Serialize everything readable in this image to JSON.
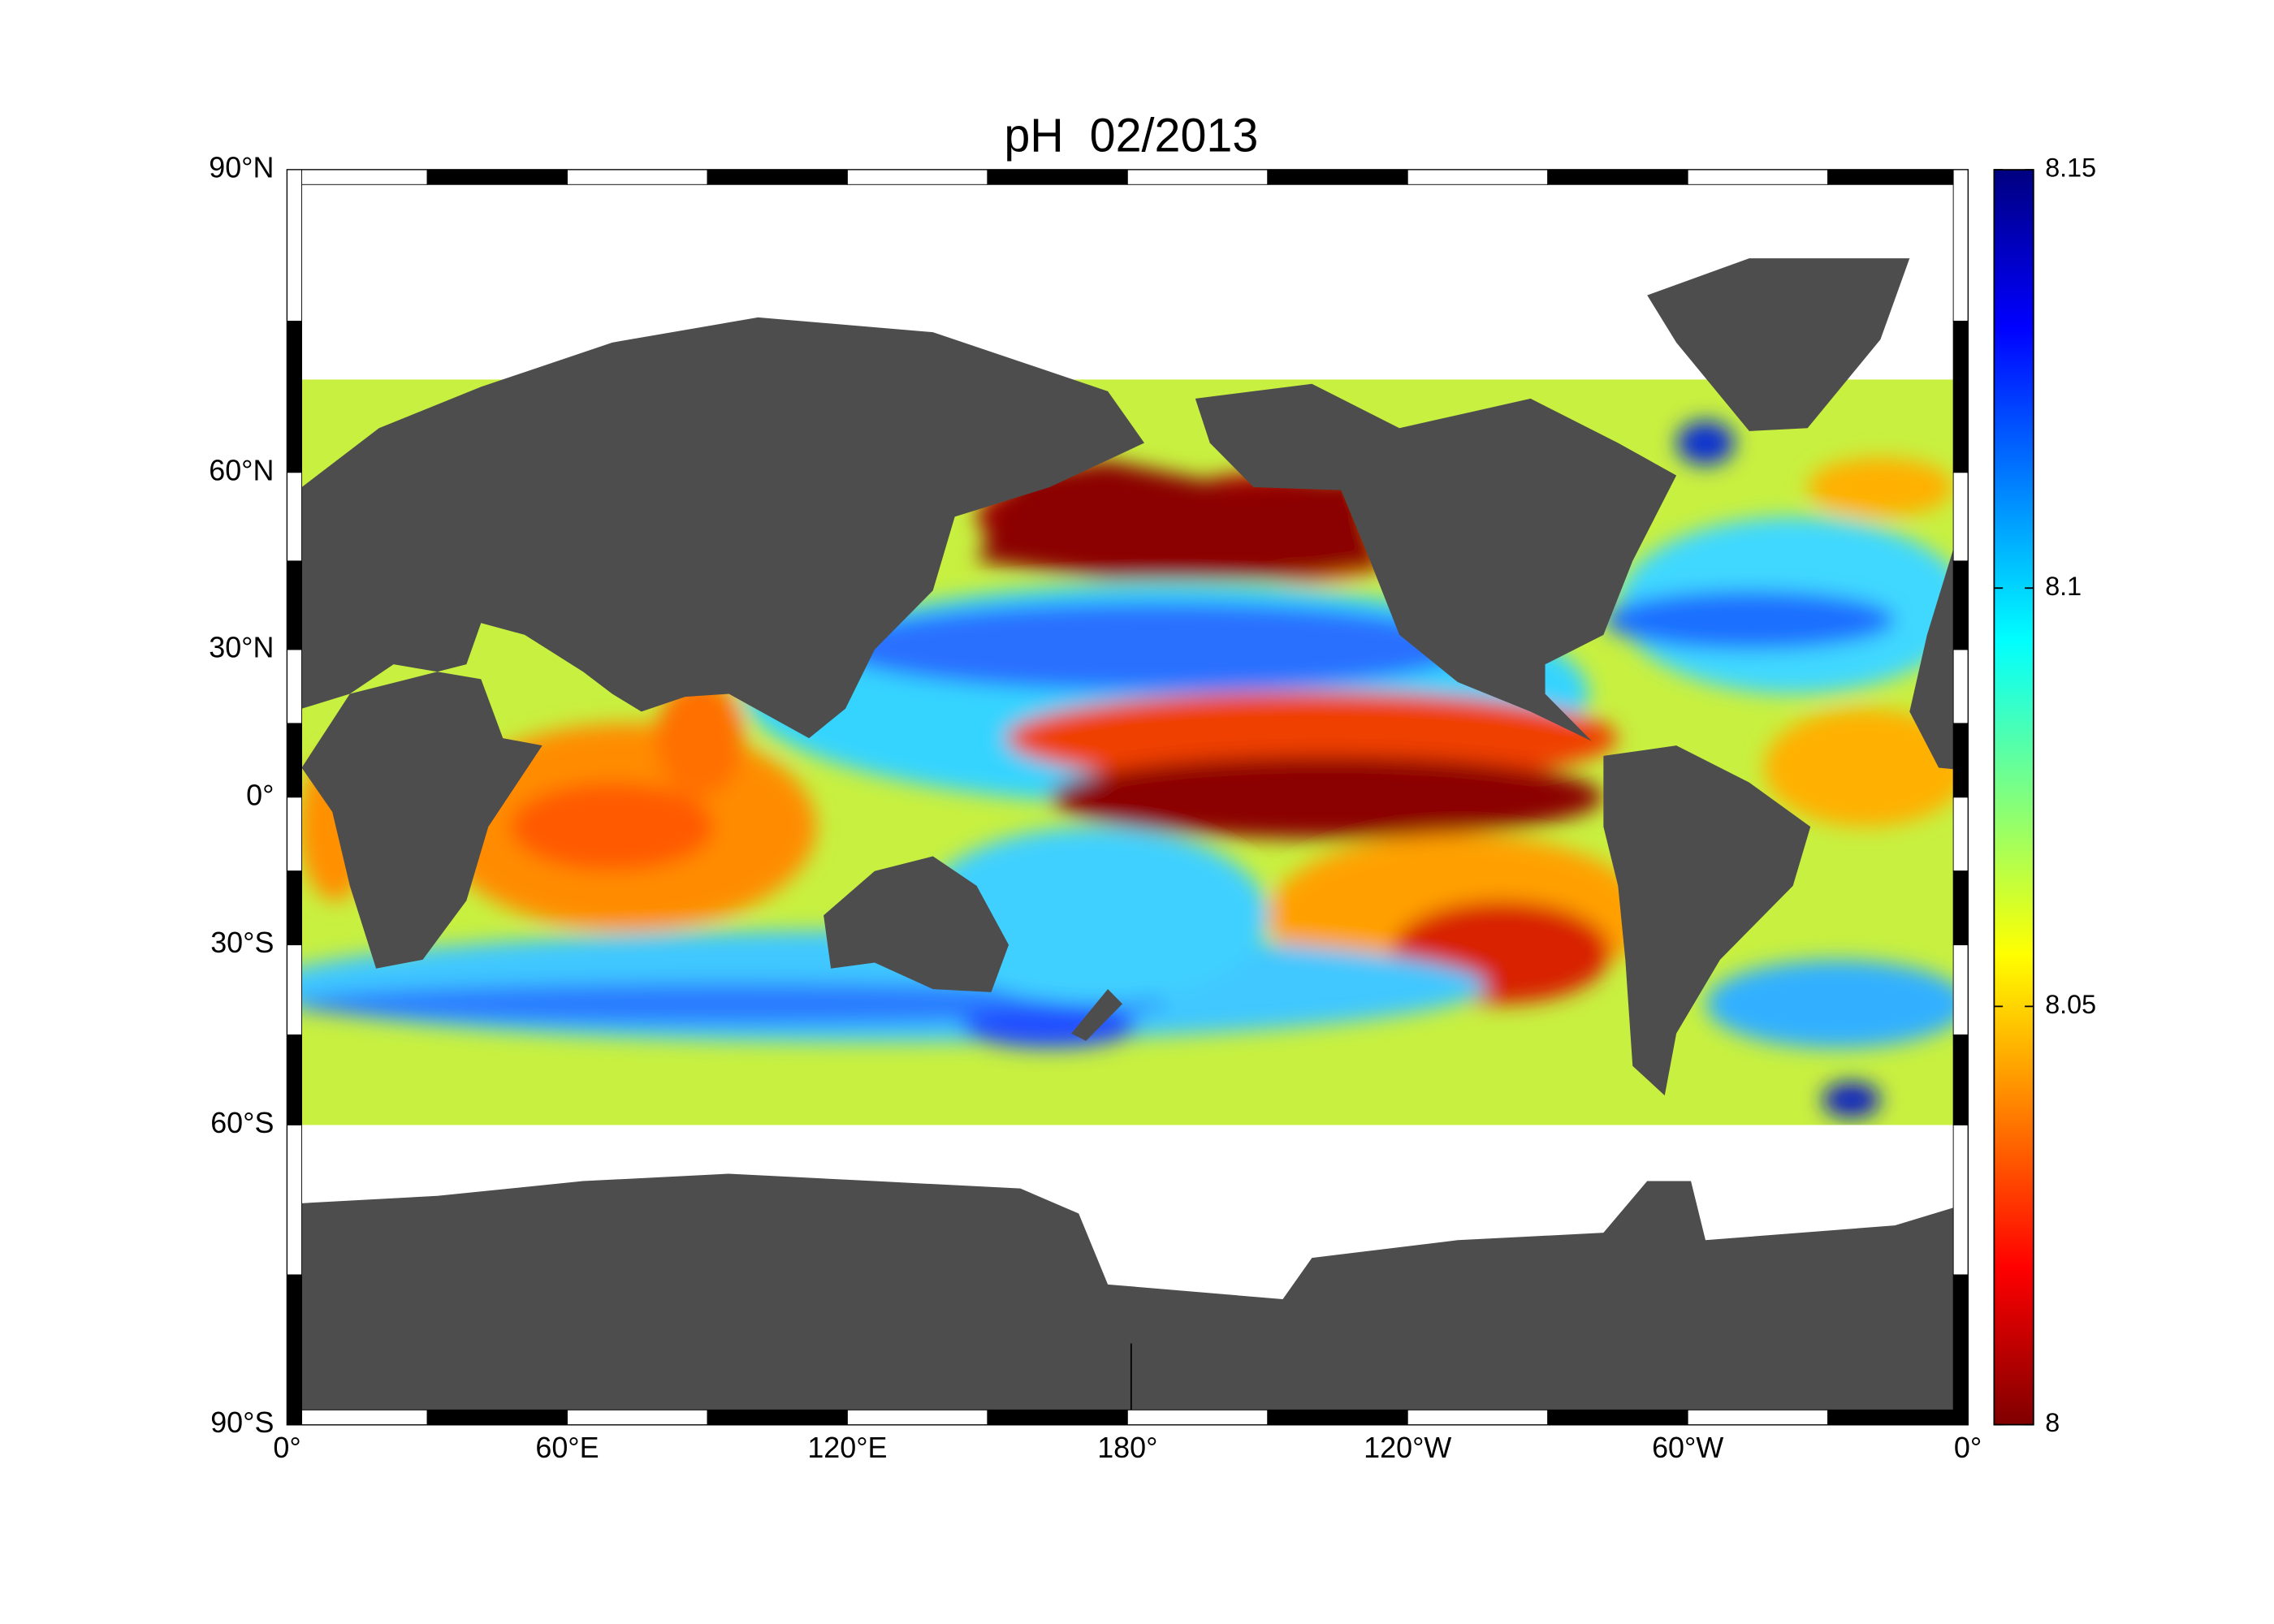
{
  "title": "pH  02/2013",
  "map": {
    "lat_labels": [
      "90°N",
      "60°N",
      "30°N",
      "0°",
      "30°S",
      "60°S",
      "90°S"
    ],
    "lon_labels": [
      "0°",
      "60°E",
      "120°E",
      "180°",
      "120°W",
      "60°W",
      "0°"
    ]
  },
  "colorbar": {
    "lim": [
      8,
      8.15
    ],
    "ticks": [
      8,
      8.05,
      8.1,
      8.15
    ]
  }
}
